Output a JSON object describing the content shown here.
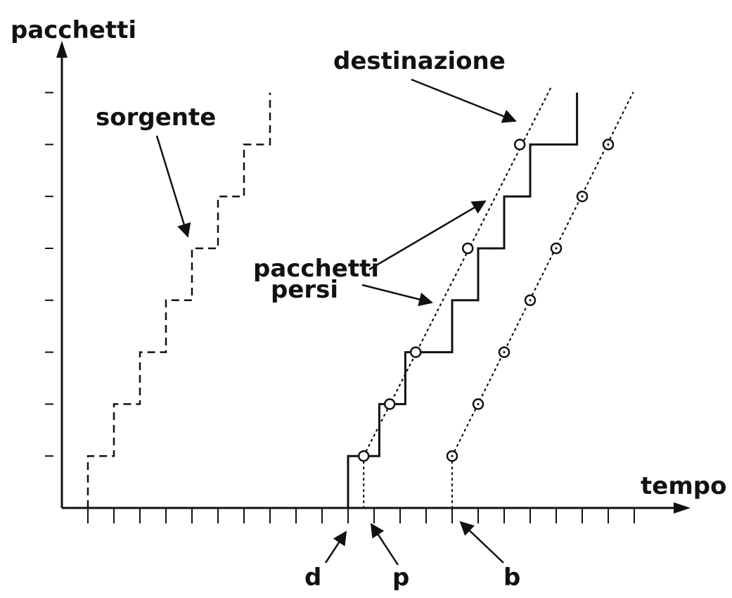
{
  "labels": {
    "y_axis": "pacchetti",
    "x_axis": "tempo",
    "source": "sorgente",
    "destination": "destinazione",
    "lost_line1": "pacchetti",
    "lost_line2": "persi",
    "d": "d",
    "p": "p",
    "b": "b"
  },
  "diagram_data": {
    "x_ticks": 22,
    "y_ticks": 8,
    "source_steps": [
      [
        1,
        0
      ],
      [
        1,
        1
      ],
      [
        2,
        1
      ],
      [
        2,
        2
      ],
      [
        3,
        2
      ],
      [
        3,
        3
      ],
      [
        4,
        3
      ],
      [
        4,
        4
      ],
      [
        5,
        4
      ],
      [
        5,
        5
      ],
      [
        6,
        5
      ],
      [
        6,
        6
      ],
      [
        7,
        6
      ],
      [
        7,
        7
      ],
      [
        8,
        7
      ],
      [
        8,
        8
      ]
    ],
    "destination_steps": [
      [
        11,
        0
      ],
      [
        11,
        1
      ],
      [
        12.2,
        1
      ],
      [
        12.2,
        2
      ],
      [
        13.2,
        2
      ],
      [
        13.2,
        3
      ],
      [
        15,
        3
      ],
      [
        15,
        4
      ],
      [
        16,
        4
      ],
      [
        16,
        5
      ],
      [
        17,
        5
      ],
      [
        17,
        6
      ],
      [
        18,
        6
      ],
      [
        18,
        7
      ],
      [
        19.8,
        7
      ],
      [
        19.8,
        8
      ]
    ],
    "destination_packets": [
      [
        11.6,
        1
      ],
      [
        12.6,
        2
      ],
      [
        13.6,
        3
      ],
      [
        15.6,
        5
      ],
      [
        17.6,
        7
      ]
    ],
    "playout_packets": [
      [
        15,
        1
      ],
      [
        16,
        2
      ],
      [
        17,
        3
      ],
      [
        18,
        4
      ],
      [
        19,
        5
      ],
      [
        20,
        6
      ],
      [
        21,
        7
      ]
    ],
    "markers": {
      "d": 11,
      "p": 11.6,
      "b": 15
    }
  }
}
